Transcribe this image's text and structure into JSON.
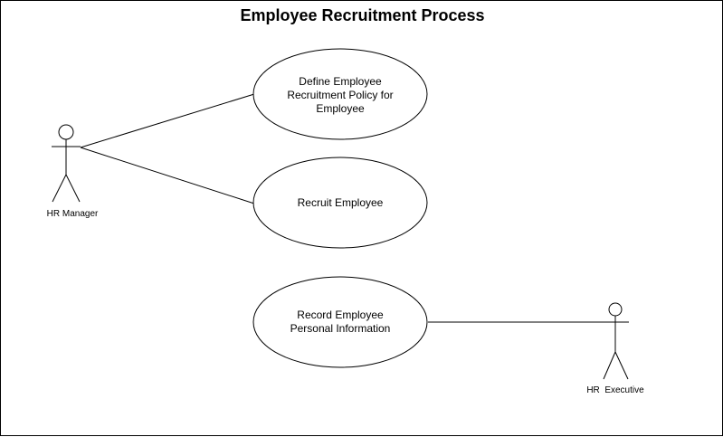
{
  "title": "Employee Recruitment Process",
  "actors": [
    {
      "id": "hr-manager",
      "label": "HR Manager"
    },
    {
      "id": "hr-executive",
      "label": "HR  Executive"
    }
  ],
  "use_cases": [
    {
      "id": "define-policy",
      "lines": [
        "Define Employee",
        "Recruitment Policy for",
        "Employee"
      ]
    },
    {
      "id": "recruit",
      "lines": [
        "Recruit Employee"
      ]
    },
    {
      "id": "record-info",
      "lines": [
        "Record Employee",
        "Personal Information"
      ]
    }
  ],
  "associations": [
    {
      "actor": "hr-manager",
      "use_case": "define-policy"
    },
    {
      "actor": "hr-manager",
      "use_case": "recruit"
    },
    {
      "actor": "hr-executive",
      "use_case": "record-info"
    }
  ],
  "colors": {
    "stroke": "#000000",
    "fill": "#ffffff",
    "text": "#000000"
  }
}
